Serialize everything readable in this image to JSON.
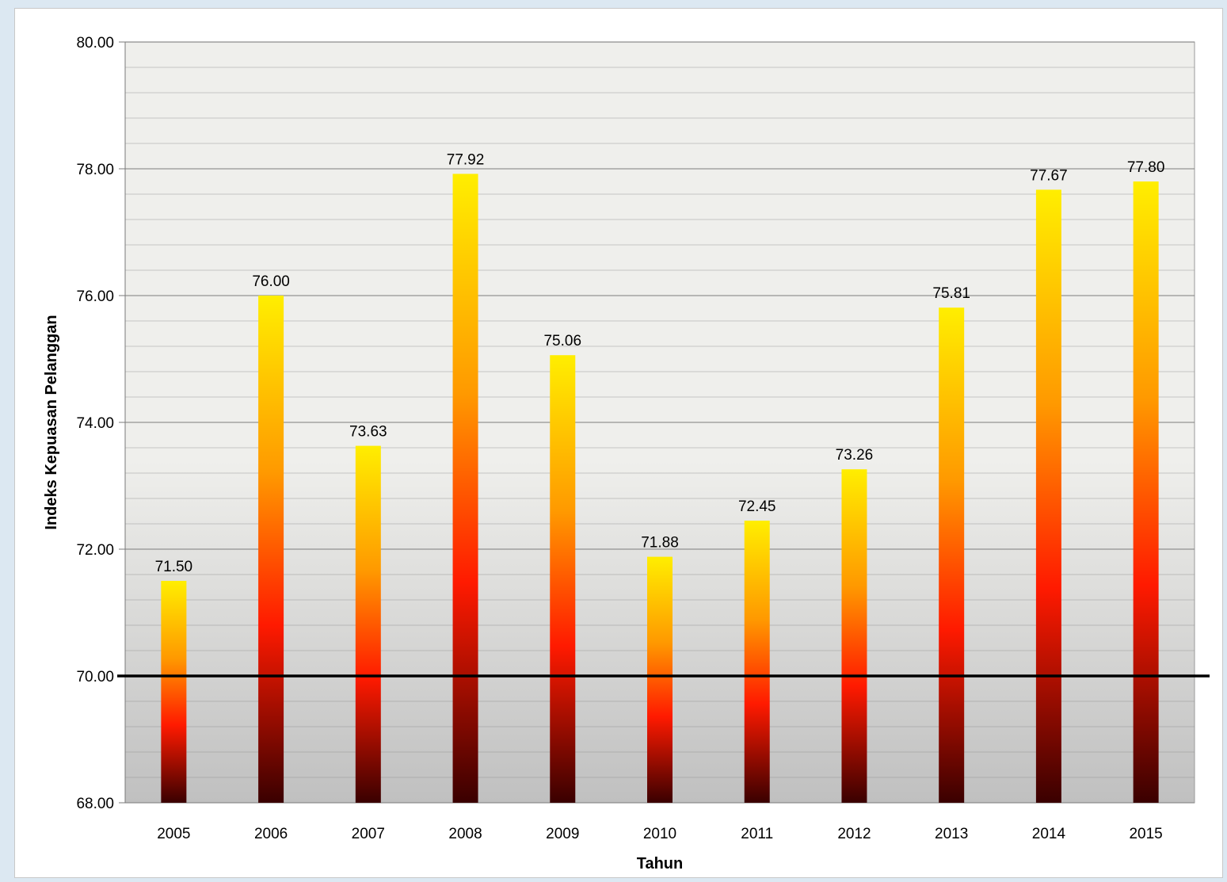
{
  "chart_data": {
    "type": "bar",
    "title": "",
    "xlabel": "Tahun",
    "ylabel": "Indeks Kepuasan Pelanggan",
    "categories": [
      "2005",
      "2006",
      "2007",
      "2008",
      "2009",
      "2010",
      "2011",
      "2012",
      "2013",
      "2014",
      "2015"
    ],
    "values": [
      71.5,
      76.0,
      73.63,
      77.92,
      75.06,
      71.88,
      72.45,
      73.26,
      75.81,
      77.67,
      77.8
    ],
    "data_labels": [
      "71.50",
      "76.00",
      "73.63",
      "77.92",
      "75.06",
      "71.88",
      "72.45",
      "73.26",
      "75.81",
      "77.67",
      "77.80"
    ],
    "ylim": [
      68,
      80
    ],
    "y_ticks": [
      "68.00",
      "70.00",
      "72.00",
      "74.00",
      "76.00",
      "78.00",
      "80.00"
    ],
    "reference_line": 70.0,
    "grid": true,
    "legend": "none",
    "colors": {
      "bar_top": "#ffee00",
      "bar_upper_mid": "#ff9900",
      "bar_mid": "#ff1a00",
      "bar_bottom": "#3a0000",
      "reference_line": "#000000",
      "plot_background_upper": "#efefec",
      "plot_background_lower": "#c0c0c0",
      "gridline": "#8a8a8a"
    }
  }
}
